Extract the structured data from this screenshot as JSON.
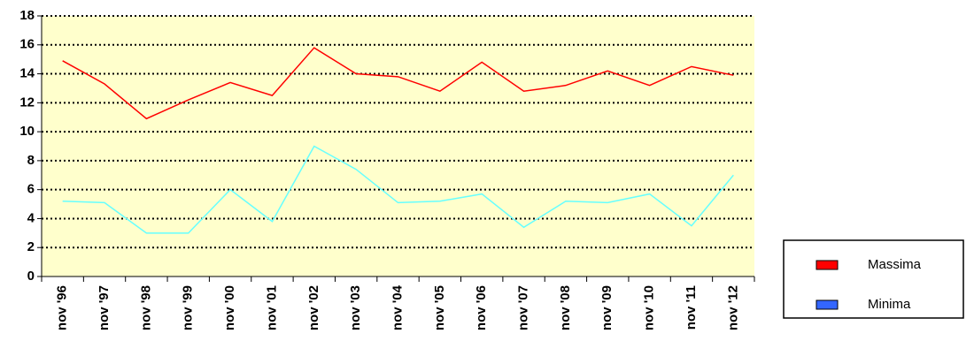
{
  "chart_data": {
    "type": "line",
    "categories": [
      "nov '96",
      "nov '97",
      "nov '98",
      "nov '99",
      "nov '00",
      "nov '01",
      "nov '02",
      "nov '03",
      "nov '04",
      "nov '05",
      "nov '06",
      "nov '07",
      "nov '08",
      "nov '09",
      "nov '10",
      "nov '11",
      "nov '12"
    ],
    "series": [
      {
        "name": "Massima",
        "color": "#ff0000",
        "legend_color": "#ff0000",
        "values": [
          14.9,
          13.3,
          10.9,
          12.2,
          13.4,
          12.5,
          15.8,
          14.0,
          13.8,
          12.8,
          14.8,
          12.8,
          13.2,
          14.2,
          13.2,
          14.5,
          13.9
        ]
      },
      {
        "name": "Minima",
        "color": "#66ffff",
        "legend_color": "#3366ff",
        "values": [
          5.2,
          5.1,
          3.0,
          3.0,
          6.0,
          3.8,
          9.0,
          7.4,
          5.1,
          5.2,
          5.7,
          3.4,
          5.2,
          5.1,
          5.7,
          3.5,
          7.0
        ]
      }
    ],
    "ylim": [
      0,
      18
    ],
    "yticks": [
      0,
      2,
      4,
      6,
      8,
      10,
      12,
      14,
      16,
      18
    ],
    "grid": true,
    "legend": "right"
  }
}
